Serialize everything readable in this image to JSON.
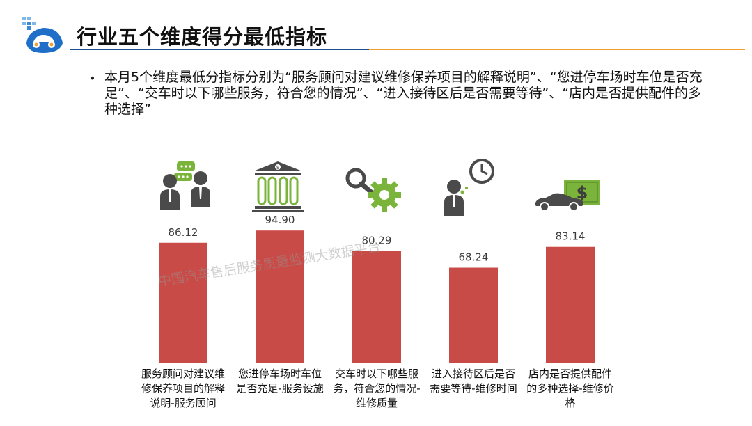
{
  "title": "行业五个维度得分最低指标",
  "summary": "本月5个维度最低分指标分别为“服务顾问对建议维修保养项目的解释说明”、“您进停车场时车位是否充足”、“交车时以下哪些服务，符合您的情况”、“进入接待区后是否需要等待”、“店内是否提供配件的多种选择”",
  "watermark": "中国汽车售后服务质量监测大数据平台",
  "colors": {
    "bar": "#c94b47",
    "icon_green": "#7ab43a",
    "icon_gray": "#4a4a4a",
    "title_blue": "#1f4e8c",
    "title_orange": "#f0a030"
  },
  "icons": [
    "consultation-icon",
    "bank-icon",
    "search-gear-icon",
    "person-clock-icon",
    "car-money-icon"
  ],
  "chart_data": {
    "type": "bar",
    "categories": [
      "服务顾问对建议维修保养项目的解释说明-服务顾问",
      "您进停车场时车位是否充足-服务设施",
      "交车时以下哪些服务，符合您的情况-维修质量",
      "进入接待区后是否需要等待-维修时间",
      "店内是否提供配件的多种选择-维修价格"
    ],
    "values": [
      86.12,
      94.9,
      80.29,
      68.24,
      83.14
    ],
    "value_labels": [
      "86.12",
      "94.90",
      "80.29",
      "68.24",
      "83.14"
    ],
    "ylim": [
      0,
      100
    ],
    "grid": false,
    "legend": "none"
  }
}
